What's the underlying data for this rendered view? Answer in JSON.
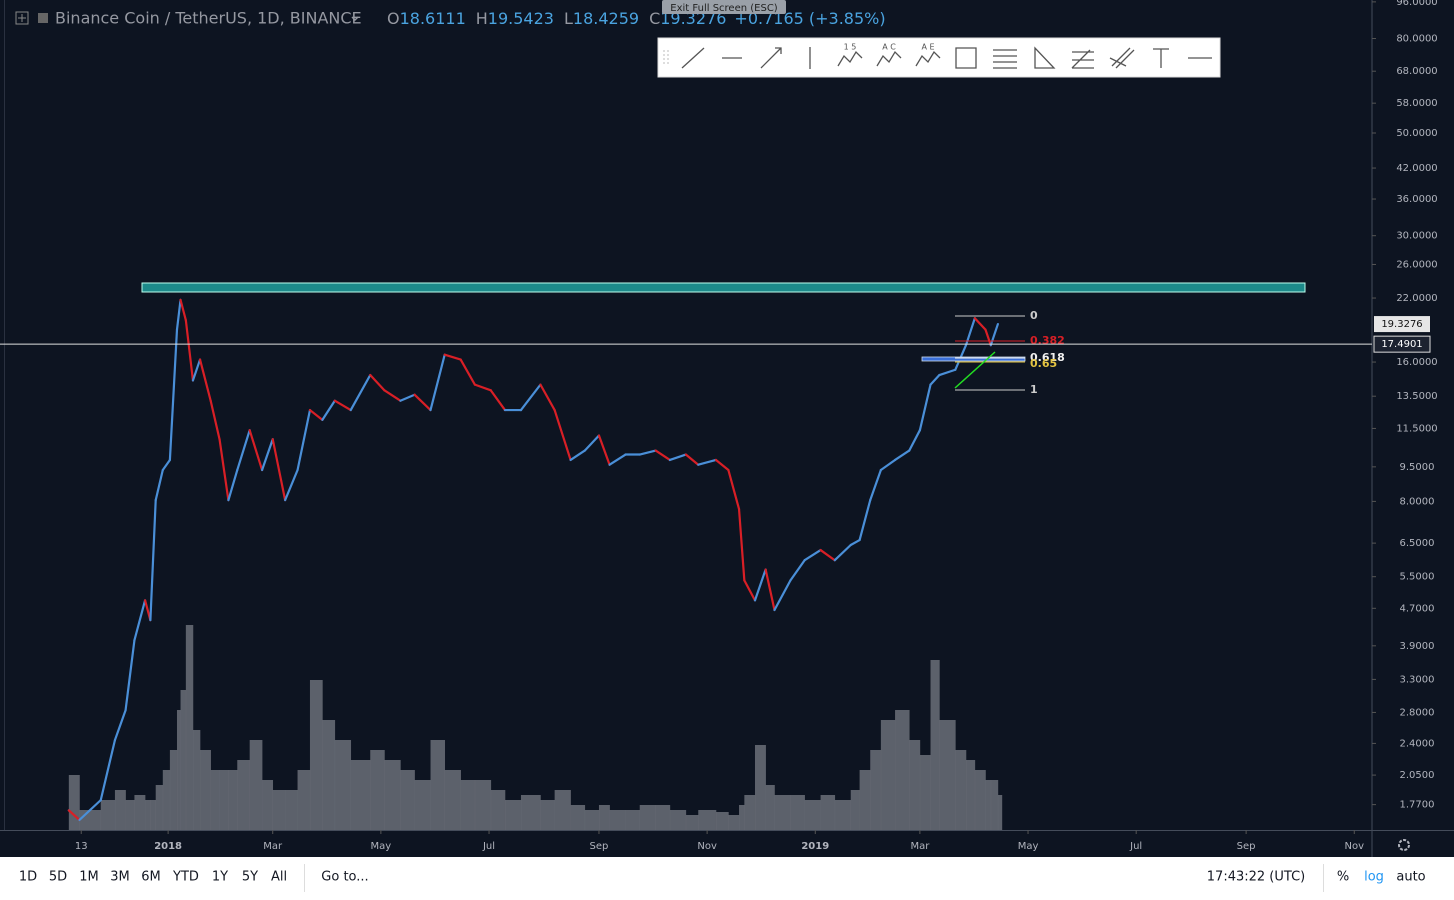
{
  "header": {
    "title": "Binance Coin / TetherUS, 1D, BINANCE",
    "ohlc": [
      {
        "label": "O",
        "value": "18.6111"
      },
      {
        "label": "H",
        "value": "19.5423"
      },
      {
        "label": "L",
        "value": "18.4259"
      },
      {
        "label": "C",
        "value": "19.3276"
      }
    ],
    "change": "+0.7165 (+3.85%)",
    "tooltip": "Exit Full Screen (ESC)"
  },
  "toolbar_labels": [
    "1 5",
    "A C",
    "A E"
  ],
  "drawings": {
    "fib_levels": [
      "0",
      "0.382",
      "0.618",
      "0.65",
      "1"
    ]
  },
  "bottom_bar": {
    "ranges": [
      "1D",
      "5D",
      "1M",
      "3M",
      "6M",
      "YTD",
      "1Y",
      "5Y",
      "All"
    ],
    "goto": "Go to...",
    "clock": "17:43:22 (UTC)",
    "percent": "%",
    "log": "log",
    "auto": "auto"
  },
  "chart_data": {
    "type": "line",
    "log_scale": true,
    "grid": false,
    "up_color": "#4a8fd8",
    "down_color": "#d81f26",
    "volume_color": "#6b6f78",
    "x": [
      -56,
      -50,
      -38,
      -30,
      -24,
      -19,
      -13,
      -10,
      -7,
      -3,
      1,
      5,
      7,
      10,
      14,
      18,
      24,
      29,
      34,
      39,
      46,
      53,
      59,
      66,
      73,
      80,
      87,
      94,
      103,
      114,
      122,
      131,
      139,
      148,
      156,
      165,
      173,
      182,
      190,
      199,
      210,
      218,
      227,
      235,
      243,
      249,
      258,
      266,
      275,
      283,
      292,
      299,
      309,
      316,
      322,
      325,
      331,
      337,
      342,
      351,
      359,
      368,
      376,
      385,
      390,
      396,
      402,
      410,
      418,
      424,
      430,
      435,
      444,
      450,
      455,
      461,
      464,
      468
    ],
    "values": [
      1.72,
      1.64,
      1.81,
      2.44,
      2.83,
      4.01,
      4.89,
      4.43,
      8.05,
      9.35,
      9.83,
      18.8,
      21.8,
      19.7,
      14.6,
      16.2,
      13.2,
      10.9,
      8.05,
      9.35,
      11.4,
      9.35,
      10.9,
      8.05,
      9.35,
      12.6,
      12.0,
      13.2,
      12.6,
      15.0,
      13.9,
      13.2,
      13.6,
      12.6,
      16.6,
      16.2,
      14.3,
      13.9,
      12.6,
      12.6,
      14.3,
      12.6,
      9.83,
      10.3,
      11.1,
      9.6,
      10.1,
      10.1,
      10.3,
      9.83,
      10.1,
      9.6,
      9.83,
      9.35,
      7.7,
      5.4,
      4.89,
      5.7,
      4.66,
      5.4,
      5.97,
      6.28,
      5.97,
      6.44,
      6.6,
      8.05,
      9.35,
      9.83,
      10.3,
      11.4,
      14.3,
      15.0,
      15.4,
      17.4,
      19.9,
      18.8,
      17.4,
      19.3276
    ],
    "volume": [
      55,
      20,
      30,
      40,
      30,
      35,
      30,
      30,
      45,
      60,
      80,
      120,
      140,
      205,
      100,
      80,
      60,
      60,
      60,
      70,
      90,
      50,
      40,
      40,
      60,
      150,
      110,
      90,
      70,
      80,
      70,
      60,
      50,
      90,
      60,
      50,
      50,
      40,
      30,
      35,
      30,
      40,
      25,
      20,
      25,
      20,
      20,
      25,
      25,
      20,
      15,
      20,
      18,
      15,
      25,
      35,
      85,
      45,
      35,
      35,
      30,
      35,
      30,
      40,
      60,
      80,
      110,
      120,
      90,
      75,
      170,
      110,
      80,
      70,
      60,
      50,
      50,
      35
    ],
    "vlim": [
      0,
      260
    ],
    "xlim": [
      -92,
      679
    ],
    "xticks": [
      {
        "value": -49,
        "label": "13"
      },
      {
        "value": 0,
        "label": "2018"
      },
      {
        "value": 59,
        "label": "Mar"
      },
      {
        "value": 120,
        "label": "May"
      },
      {
        "value": 181,
        "label": "Jul"
      },
      {
        "value": 243,
        "label": "Sep"
      },
      {
        "value": 304,
        "label": "Nov"
      },
      {
        "value": 365,
        "label": "2019"
      },
      {
        "value": 424,
        "label": "Mar"
      },
      {
        "value": 485,
        "label": "May"
      },
      {
        "value": 546,
        "label": "Jul"
      },
      {
        "value": 608,
        "label": "Sep"
      },
      {
        "value": 669,
        "label": "Nov"
      }
    ],
    "ylim": [
      1.56,
      96.9
    ],
    "yticks": [
      {
        "value": 96,
        "label": "96.0000"
      },
      {
        "value": 80,
        "label": "80.0000"
      },
      {
        "value": 68,
        "label": "68.0000"
      },
      {
        "value": 58,
        "label": "58.0000"
      },
      {
        "value": 50,
        "label": "50.0000"
      },
      {
        "value": 42,
        "label": "42.0000"
      },
      {
        "value": 36,
        "label": "36.0000"
      },
      {
        "value": 30,
        "label": "30.0000"
      },
      {
        "value": 26,
        "label": "26.0000"
      },
      {
        "value": 22,
        "label": "22.0000"
      },
      {
        "value": 16,
        "label": "16.0000"
      },
      {
        "value": 13.5,
        "label": "13.5000"
      },
      {
        "value": 11.5,
        "label": "11.5000"
      },
      {
        "value": 9.5,
        "label": "9.5000"
      },
      {
        "value": 8,
        "label": "8.0000"
      },
      {
        "value": 6.5,
        "label": "6.5000"
      },
      {
        "value": 5.5,
        "label": "5.5000"
      },
      {
        "value": 4.7,
        "label": "4.7000"
      },
      {
        "value": 3.9,
        "label": "3.9000"
      },
      {
        "value": 3.3,
        "label": "3.3000"
      },
      {
        "value": 2.8,
        "label": "2.8000"
      },
      {
        "value": 2.4,
        "label": "2.4000"
      },
      {
        "value": 2.05,
        "label": "2.0500"
      },
      {
        "value": 1.77,
        "label": "1.7700"
      }
    ],
    "last_price": 19.3276,
    "crosshair_price": 17.4901
  }
}
